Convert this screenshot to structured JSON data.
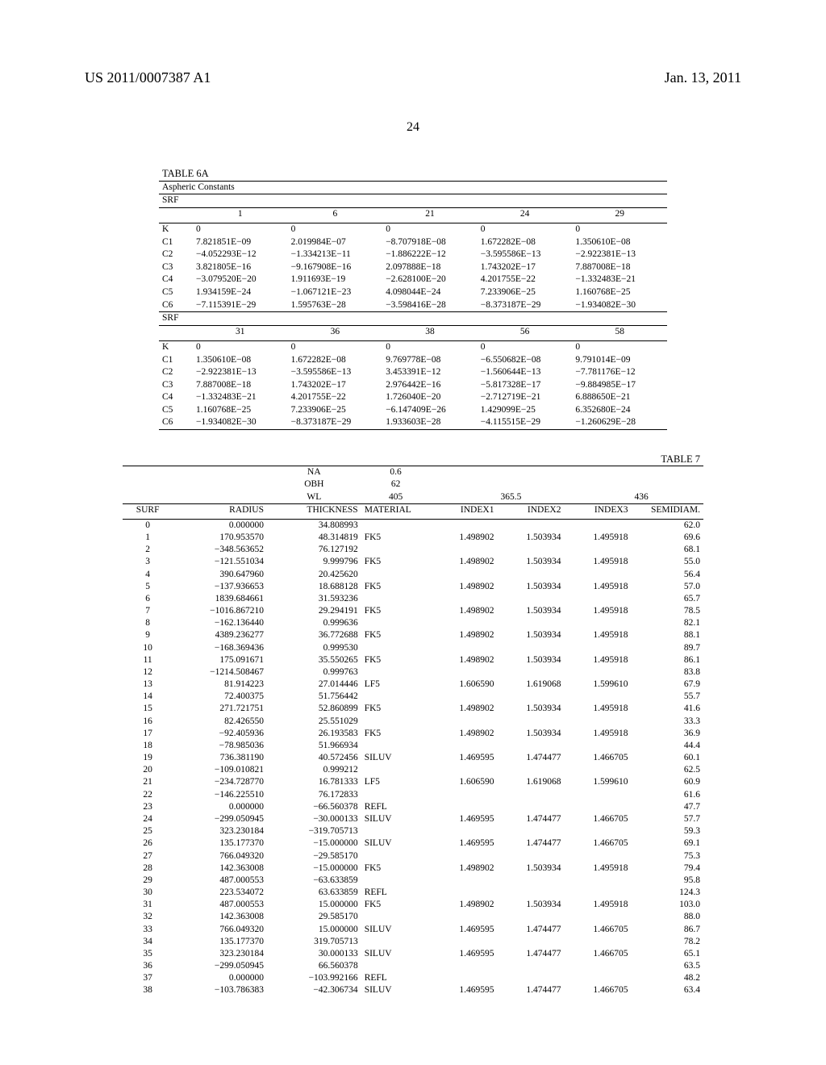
{
  "header": {
    "left": "US 2011/0007387 A1",
    "right": "Jan. 13, 2011",
    "page": "24"
  },
  "table6a": {
    "title": "TABLE 6A",
    "subtitle": "Aspheric Constants",
    "srf_label": "SRF",
    "row_labels": [
      "K",
      "C1",
      "C2",
      "C3",
      "C4",
      "C5",
      "C6"
    ],
    "block1": {
      "cols": [
        "1",
        "6",
        "21",
        "24",
        "29"
      ],
      "rows": [
        [
          "0",
          "0",
          "0",
          "0",
          "0"
        ],
        [
          "7.821851E−09",
          "2.019984E−07",
          "−8.707918E−08",
          "1.672282E−08",
          "1.350610E−08"
        ],
        [
          "−4.052293E−12",
          "−1.334213E−11",
          "−1.886222E−12",
          "−3.595586E−13",
          "−2.922381E−13"
        ],
        [
          "3.821805E−16",
          "−9.167908E−16",
          "2.097888E−18",
          "1.743202E−17",
          "7.887008E−18"
        ],
        [
          "−3.079520E−20",
          "1.911693E−19",
          "−2.628100E−20",
          "4.201755E−22",
          "−1.332483E−21"
        ],
        [
          "1.934159E−24",
          "−1.067121E−23",
          "4.098044E−24",
          "7.233906E−25",
          "1.160768E−25"
        ],
        [
          "−7.115391E−29",
          "1.595763E−28",
          "−3.598416E−28",
          "−8.373187E−29",
          "−1.934082E−30"
        ]
      ]
    },
    "block2": {
      "cols": [
        "31",
        "36",
        "38",
        "56",
        "58"
      ],
      "rows": [
        [
          "0",
          "0",
          "0",
          "0",
          "0"
        ],
        [
          "1.350610E−08",
          "1.672282E−08",
          "9.769778E−08",
          "−6.550682E−08",
          "9.791014E−09"
        ],
        [
          "−2.922381E−13",
          "−3.595586E−13",
          "3.453391E−12",
          "−1.560644E−13",
          "−7.781176E−12"
        ],
        [
          "7.887008E−18",
          "1.743202E−17",
          "2.976442E−16",
          "−5.817328E−17",
          "−9.884985E−17"
        ],
        [
          "−1.332483E−21",
          "4.201755E−22",
          "1.726040E−20",
          "−2.712719E−21",
          "6.888650E−21"
        ],
        [
          "1.160768E−25",
          "7.233906E−25",
          "−6.147409E−26",
          "1.429099E−25",
          "6.352680E−24"
        ],
        [
          "−1.934082E−30",
          "−8.373187E−29",
          "1.933603E−28",
          "−4.115515E−29",
          "−1.260629E−28"
        ]
      ]
    }
  },
  "table7": {
    "title": "TABLE 7",
    "meta_rows": [
      [
        "NA",
        "0.6",
        "",
        "",
        ""
      ],
      [
        "OBH",
        "62",
        "",
        "",
        ""
      ],
      [
        "WL",
        "405",
        "365.5",
        "",
        "436"
      ]
    ],
    "columns": [
      "SURF",
      "RADIUS",
      "THICKNESS",
      "MATERIAL",
      "INDEX1",
      "INDEX2",
      "INDEX3",
      "SEMIDIAM."
    ],
    "rows": [
      [
        "0",
        "0.000000",
        "34.808993",
        "",
        "",
        "",
        "",
        "62.0"
      ],
      [
        "1",
        "170.953570",
        "48.314819",
        "FK5",
        "1.498902",
        "1.503934",
        "1.495918",
        "69.6"
      ],
      [
        "2",
        "−348.563652",
        "76.127192",
        "",
        "",
        "",
        "",
        "68.1"
      ],
      [
        "3",
        "−121.551034",
        "9.999796",
        "FK5",
        "1.498902",
        "1.503934",
        "1.495918",
        "55.0"
      ],
      [
        "4",
        "390.647960",
        "20.425620",
        "",
        "",
        "",
        "",
        "56.4"
      ],
      [
        "5",
        "−137.936653",
        "18.688128",
        "FK5",
        "1.498902",
        "1.503934",
        "1.495918",
        "57.0"
      ],
      [
        "6",
        "1839.684661",
        "31.593236",
        "",
        "",
        "",
        "",
        "65.7"
      ],
      [
        "7",
        "−1016.867210",
        "29.294191",
        "FK5",
        "1.498902",
        "1.503934",
        "1.495918",
        "78.5"
      ],
      [
        "8",
        "−162.136440",
        "0.999636",
        "",
        "",
        "",
        "",
        "82.1"
      ],
      [
        "9",
        "4389.236277",
        "36.772688",
        "FK5",
        "1.498902",
        "1.503934",
        "1.495918",
        "88.1"
      ],
      [
        "10",
        "−168.369436",
        "0.999530",
        "",
        "",
        "",
        "",
        "89.7"
      ],
      [
        "11",
        "175.091671",
        "35.550265",
        "FK5",
        "1.498902",
        "1.503934",
        "1.495918",
        "86.1"
      ],
      [
        "12",
        "−1214.508467",
        "0.999763",
        "",
        "",
        "",
        "",
        "83.8"
      ],
      [
        "13",
        "81.914223",
        "27.014446",
        "LF5",
        "1.606590",
        "1.619068",
        "1.599610",
        "67.9"
      ],
      [
        "14",
        "72.400375",
        "51.756442",
        "",
        "",
        "",
        "",
        "55.7"
      ],
      [
        "15",
        "271.721751",
        "52.860899",
        "FK5",
        "1.498902",
        "1.503934",
        "1.495918",
        "41.6"
      ],
      [
        "16",
        "82.426550",
        "25.551029",
        "",
        "",
        "",
        "",
        "33.3"
      ],
      [
        "17",
        "−92.405936",
        "26.193583",
        "FK5",
        "1.498902",
        "1.503934",
        "1.495918",
        "36.9"
      ],
      [
        "18",
        "−78.985036",
        "51.966934",
        "",
        "",
        "",
        "",
        "44.4"
      ],
      [
        "19",
        "736.381190",
        "40.572456",
        "SILUV",
        "1.469595",
        "1.474477",
        "1.466705",
        "60.1"
      ],
      [
        "20",
        "−109.010821",
        "0.999212",
        "",
        "",
        "",
        "",
        "62.5"
      ],
      [
        "21",
        "−234.728770",
        "16.781333",
        "LF5",
        "1.606590",
        "1.619068",
        "1.599610",
        "60.9"
      ],
      [
        "22",
        "−146.225510",
        "76.172833",
        "",
        "",
        "",
        "",
        "61.6"
      ],
      [
        "23",
        "0.000000",
        "−66.560378",
        "REFL",
        "",
        "",
        "",
        "47.7"
      ],
      [
        "24",
        "−299.050945",
        "−30.000133",
        "SILUV",
        "1.469595",
        "1.474477",
        "1.466705",
        "57.7"
      ],
      [
        "25",
        "323.230184",
        "−319.705713",
        "",
        "",
        "",
        "",
        "59.3"
      ],
      [
        "26",
        "135.177370",
        "−15.000000",
        "SILUV",
        "1.469595",
        "1.474477",
        "1.466705",
        "69.1"
      ],
      [
        "27",
        "766.049320",
        "−29.585170",
        "",
        "",
        "",
        "",
        "75.3"
      ],
      [
        "28",
        "142.363008",
        "−15.000000",
        "FK5",
        "1.498902",
        "1.503934",
        "1.495918",
        "79.4"
      ],
      [
        "29",
        "487.000553",
        "−63.633859",
        "",
        "",
        "",
        "",
        "95.8"
      ],
      [
        "30",
        "223.534072",
        "63.633859",
        "REFL",
        "",
        "",
        "",
        "124.3"
      ],
      [
        "31",
        "487.000553",
        "15.000000",
        "FK5",
        "1.498902",
        "1.503934",
        "1.495918",
        "103.0"
      ],
      [
        "32",
        "142.363008",
        "29.585170",
        "",
        "",
        "",
        "",
        "88.0"
      ],
      [
        "33",
        "766.049320",
        "15.000000",
        "SILUV",
        "1.469595",
        "1.474477",
        "1.466705",
        "86.7"
      ],
      [
        "34",
        "135.177370",
        "319.705713",
        "",
        "",
        "",
        "",
        "78.2"
      ],
      [
        "35",
        "323.230184",
        "30.000133",
        "SILUV",
        "1.469595",
        "1.474477",
        "1.466705",
        "65.1"
      ],
      [
        "36",
        "−299.050945",
        "66.560378",
        "",
        "",
        "",
        "",
        "63.5"
      ],
      [
        "37",
        "0.000000",
        "−103.992166",
        "REFL",
        "",
        "",
        "",
        "48.2"
      ],
      [
        "38",
        "−103.786383",
        "−42.306734",
        "SILUV",
        "1.469595",
        "1.474477",
        "1.466705",
        "63.4"
      ]
    ]
  }
}
